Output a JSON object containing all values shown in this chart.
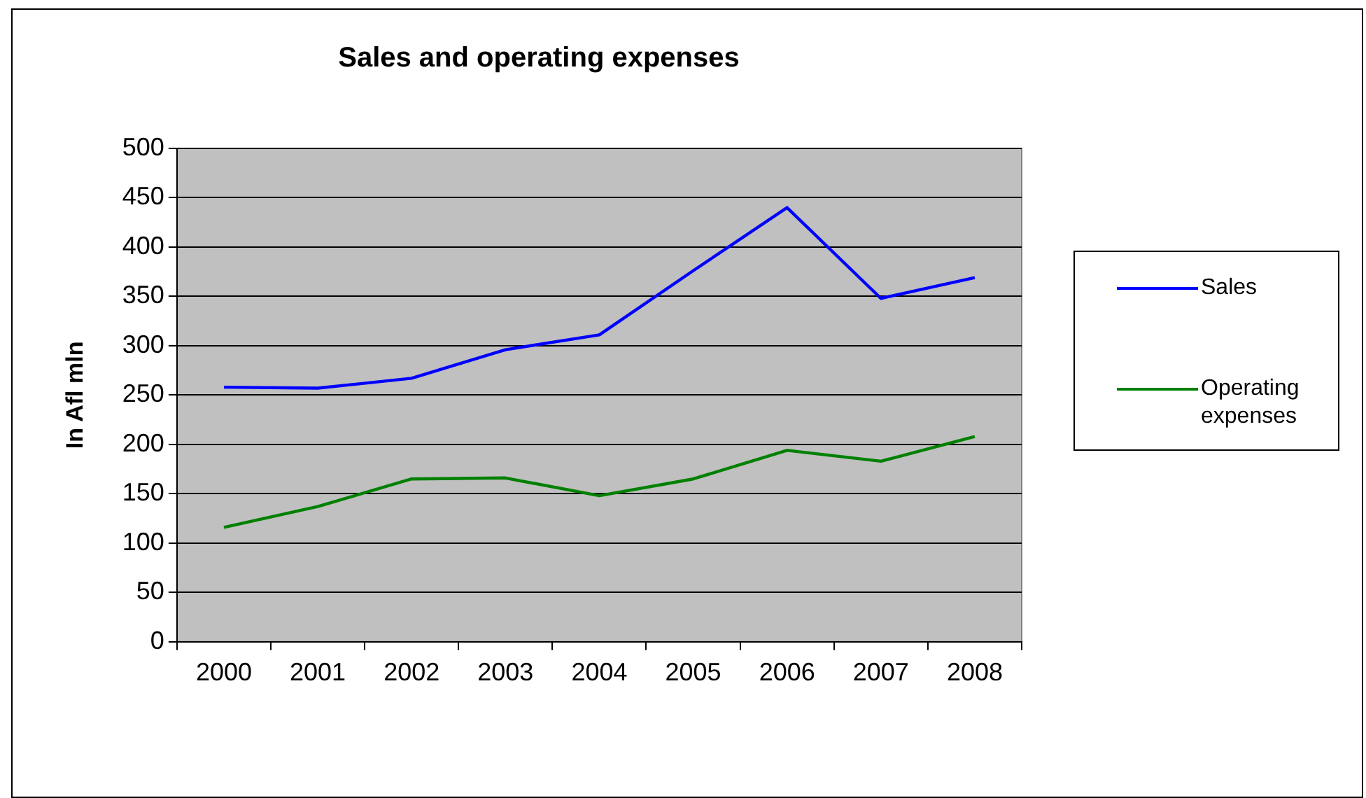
{
  "chart_data": {
    "type": "line",
    "title": "Sales and operating expenses",
    "ylabel": "In Afl mln",
    "categories": [
      "2000",
      "2001",
      "2002",
      "2003",
      "2004",
      "2005",
      "2006",
      "2007",
      "2008"
    ],
    "series": [
      {
        "name": "Sales",
        "color": "#0000ff",
        "values": [
          258,
          257,
          267,
          296,
          311,
          376,
          440,
          348,
          369
        ]
      },
      {
        "name": "Operating expenses",
        "color": "#008000",
        "values": [
          116,
          137,
          165,
          166,
          148,
          165,
          194,
          183,
          208
        ]
      }
    ],
    "ylim": [
      0,
      500
    ],
    "yticks": [
      0,
      50,
      100,
      150,
      200,
      250,
      300,
      350,
      400,
      450,
      500
    ],
    "grid": "y",
    "legend": "right",
    "marker": "none",
    "line_style": "solid"
  }
}
